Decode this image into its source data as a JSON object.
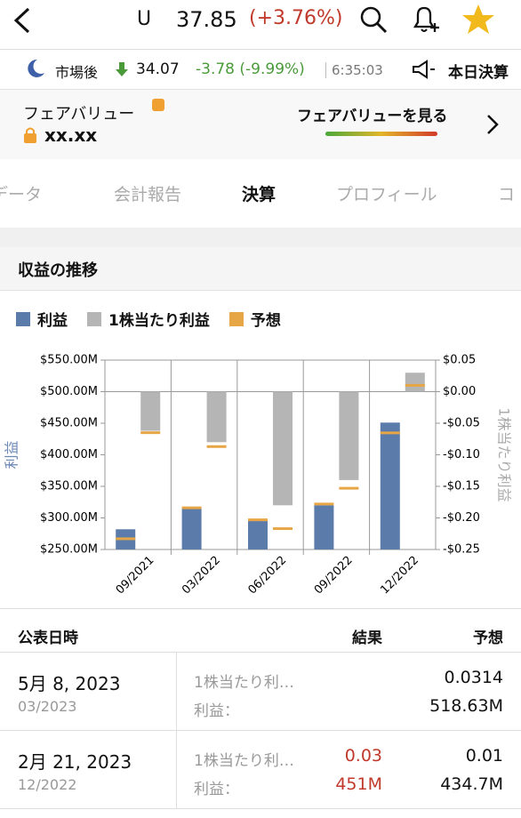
{
  "header": {
    "ticker": "U",
    "price": "37.85",
    "change": "(+3.76%)"
  },
  "after_hours": {
    "label": "市場後",
    "price": "34.07",
    "change": "-3.78 (-9.99%)",
    "time": "6:35:03",
    "earnings": "本日決算"
  },
  "fair_value": {
    "label": "フェアバリュー",
    "value": "xx.xx",
    "link": "フェアバリューを見る"
  },
  "tabs": [
    "データ",
    "会計報告",
    "決算",
    "プロフィール",
    "コ"
  ],
  "section_title": "収益の推移",
  "chart_data": {
    "type": "bar",
    "y_label": "利益",
    "y2_label": "1株当たり利益",
    "categories": [
      "09/2021",
      "03/2022",
      "06/2022",
      "09/2022",
      "12/2022"
    ],
    "series": [
      {
        "name": "利益",
        "color": "#5b7bab",
        "values": [
          282,
          315,
          295,
          320,
          451
        ]
      },
      {
        "name": "1株当たり利益",
        "color": "#b5b5b5",
        "axis": "y2",
        "values": [
          -0.062,
          -0.08,
          -0.18,
          -0.14,
          0.03
        ]
      },
      {
        "name": "予想",
        "color": "#e6a645",
        "marker": true,
        "values": [
          267,
          316,
          297,
          322,
          434.7
        ],
        "y2_values": [
          -0.065,
          -0.087,
          -0.217,
          -0.153,
          0.01
        ]
      }
    ],
    "ylim": [
      250,
      550
    ],
    "yticks": [
      {
        "value": 250,
        "label": "$250.00M"
      },
      {
        "value": 300,
        "label": "$300.00M"
      },
      {
        "value": 350,
        "label": "$350.00M"
      },
      {
        "value": 400,
        "label": "$400.00M"
      },
      {
        "value": 450,
        "label": "$450.00M"
      },
      {
        "value": 500,
        "label": "$500.00M"
      },
      {
        "value": 550,
        "label": "$550.00M"
      }
    ],
    "y2lim": [
      -0.25,
      0.05
    ],
    "y2ticks": [
      {
        "value": 0.05,
        "label": "$0.05"
      },
      {
        "value": 0,
        "label": "$0.00"
      },
      {
        "value": -0.05,
        "label": "-$0.05"
      },
      {
        "value": -0.1,
        "label": "-$0.10"
      },
      {
        "value": -0.15,
        "label": "-$0.15"
      },
      {
        "value": -0.2,
        "label": "-$0.20"
      },
      {
        "value": -0.25,
        "label": "-$0.25"
      }
    ]
  },
  "table": {
    "headers": [
      "公表日時",
      "結果",
      "予想"
    ],
    "rows": [
      {
        "date": "5月 8, 2023",
        "period": "03/2023",
        "labels": [
          "1株当たり利…",
          "利益："
        ],
        "forecast": [
          "0.0314",
          "518.63M"
        ]
      },
      {
        "date": "2月 21, 2023",
        "period": "12/2022",
        "labels": [
          "1株当たり利…",
          "利益："
        ],
        "result": [
          "0.03",
          "451M"
        ],
        "forecast": [
          "0.01",
          "434.7M"
        ]
      }
    ]
  }
}
